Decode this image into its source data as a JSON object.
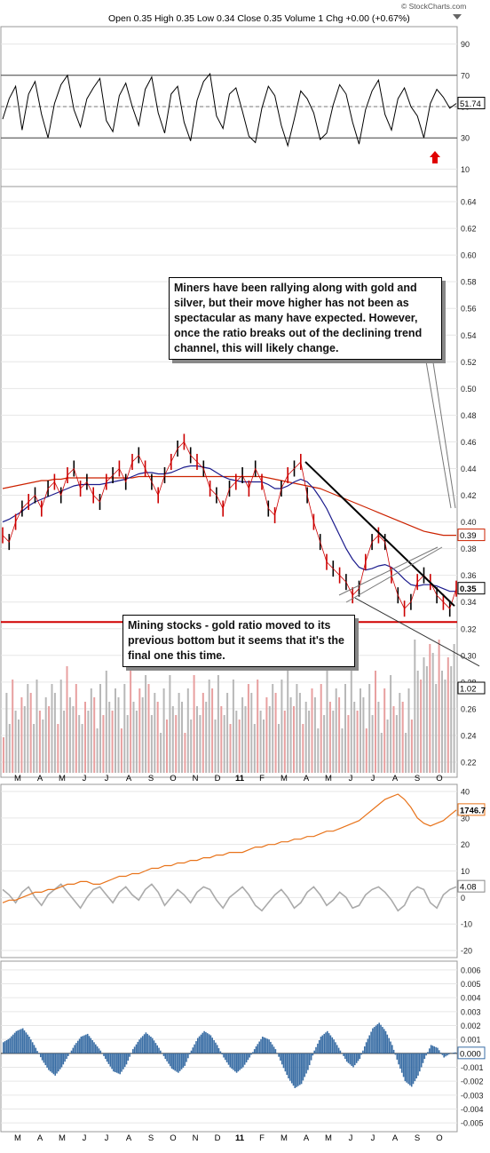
{
  "header": {
    "ohlc": "Open 0.35  High 0.35  Low 0.34  Close 0.35  Volume 1  Chg +0.00 (+0.67%)",
    "watermark": "© StockCharts.com"
  },
  "annotations": {
    "top": "Miners have been rallying along with gold and silver, but their move higher has not been as spectacular as many have expected. However, once the ratio breaks out of the declining trend channel, this will likely change.",
    "bottom": "Mining stocks - gold ratio moved to its previous bottom but it seems that it's the final one this time."
  },
  "colors": {
    "price": "#cc0000",
    "bars": "#000000",
    "ma_short": "#1a1a8c",
    "ma_long": "#cc2200",
    "gold": "#e8731a",
    "gray": "#aaaaaa",
    "hist": "#3a6ea5",
    "volume_red": "#e8a0a0",
    "volume_gray": "#b8b8b8",
    "arrow": "#e00000"
  },
  "chart_data": [
    {
      "type": "line",
      "name": "rsi",
      "y_ticks": [
        "90",
        "70",
        "50",
        "30",
        "10"
      ],
      "ylim": [
        0,
        100
      ],
      "levels": [
        70,
        30
      ],
      "last_value": "51.74",
      "values": [
        42,
        55,
        63,
        35,
        58,
        66,
        45,
        30,
        52,
        64,
        70,
        48,
        37,
        55,
        62,
        68,
        41,
        34,
        57,
        65,
        50,
        38,
        61,
        69,
        46,
        33,
        58,
        63,
        40,
        28,
        54,
        66,
        71,
        44,
        36,
        58,
        62,
        47,
        31,
        27,
        49,
        63,
        57,
        38,
        25,
        42,
        60,
        55,
        46,
        29,
        33,
        51,
        64,
        58,
        40,
        26,
        48,
        60,
        67,
        45,
        35,
        55,
        62,
        50,
        44,
        30,
        52,
        61,
        56,
        49,
        52
      ]
    },
    {
      "type": "line",
      "name": "ratio",
      "y_ticks": [
        "0.64",
        "0.62",
        "0.60",
        "0.58",
        "0.56",
        "0.54",
        "0.52",
        "0.50",
        "0.48",
        "0.46",
        "0.44",
        "0.42",
        "0.40",
        "0.38",
        "0.36",
        "0.34",
        "0.32",
        "0.30",
        "0.28",
        "0.26",
        "0.24",
        "0.22"
      ],
      "ylim": [
        0.21,
        0.65
      ],
      "support_level": 0.325,
      "last_value": "0.35",
      "ma_long_value": "0.39",
      "values": [
        0.39,
        0.385,
        0.4,
        0.41,
        0.415,
        0.42,
        0.41,
        0.425,
        0.43,
        0.42,
        0.435,
        0.44,
        0.425,
        0.43,
        0.42,
        0.415,
        0.43,
        0.435,
        0.44,
        0.43,
        0.445,
        0.45,
        0.44,
        0.43,
        0.42,
        0.435,
        0.445,
        0.455,
        0.46,
        0.45,
        0.445,
        0.44,
        0.425,
        0.42,
        0.41,
        0.425,
        0.43,
        0.435,
        0.425,
        0.44,
        0.43,
        0.41,
        0.405,
        0.425,
        0.435,
        0.44,
        0.445,
        0.42,
        0.4,
        0.385,
        0.37,
        0.365,
        0.36,
        0.355,
        0.345,
        0.35,
        0.37,
        0.385,
        0.39,
        0.385,
        0.36,
        0.345,
        0.335,
        0.34,
        0.355,
        0.36,
        0.355,
        0.345,
        0.34,
        0.335,
        0.35
      ],
      "ma_short": [
        0.4,
        0.402,
        0.405,
        0.408,
        0.412,
        0.415,
        0.417,
        0.419,
        0.421,
        0.423,
        0.425,
        0.427,
        0.428,
        0.428,
        0.428,
        0.428,
        0.429,
        0.43,
        0.431,
        0.432,
        0.434,
        0.436,
        0.437,
        0.437,
        0.436,
        0.436,
        0.437,
        0.439,
        0.441,
        0.442,
        0.442,
        0.441,
        0.44,
        0.437,
        0.434,
        0.432,
        0.431,
        0.43,
        0.43,
        0.43,
        0.43,
        0.428,
        0.425,
        0.425,
        0.427,
        0.43,
        0.432,
        0.43,
        0.425,
        0.418,
        0.41,
        0.4,
        0.39,
        0.38,
        0.372,
        0.366,
        0.364,
        0.365,
        0.367,
        0.368,
        0.366,
        0.362,
        0.357,
        0.353,
        0.352,
        0.353,
        0.353,
        0.352,
        0.35,
        0.348,
        0.348
      ],
      "ma_long": [
        0.425,
        0.426,
        0.427,
        0.428,
        0.429,
        0.43,
        0.431,
        0.431,
        0.432,
        0.432,
        0.433,
        0.433,
        0.433,
        0.433,
        0.433,
        0.433,
        0.433,
        0.433,
        0.433,
        0.433,
        0.433,
        0.434,
        0.434,
        0.434,
        0.434,
        0.434,
        0.434,
        0.434,
        0.434,
        0.434,
        0.434,
        0.434,
        0.434,
        0.434,
        0.434,
        0.434,
        0.434,
        0.434,
        0.434,
        0.434,
        0.434,
        0.433,
        0.432,
        0.431,
        0.43,
        0.429,
        0.428,
        0.427,
        0.426,
        0.425,
        0.423,
        0.421,
        0.419,
        0.417,
        0.415,
        0.413,
        0.411,
        0.409,
        0.407,
        0.405,
        0.403,
        0.401,
        0.399,
        0.397,
        0.395,
        0.393,
        0.392,
        0.391,
        0.39,
        0.39,
        0.39
      ],
      "volume_last": "1.02"
    },
    {
      "type": "line",
      "name": "gold_and_oscillator",
      "y_ticks": [
        "40",
        "30",
        "20",
        "10",
        "0",
        "-10",
        "-20"
      ],
      "ylim": [
        -22,
        42
      ],
      "gold_last": "1746.7",
      "osc_last": "4.08",
      "gold": [
        -2,
        -1,
        -1,
        0,
        1,
        2,
        2,
        3,
        3,
        4,
        5,
        5,
        6,
        6,
        5,
        5,
        6,
        7,
        8,
        8,
        9,
        9,
        10,
        11,
        11,
        12,
        12,
        13,
        13,
        14,
        14,
        15,
        15,
        16,
        16,
        17,
        17,
        17,
        18,
        19,
        19,
        20,
        20,
        21,
        21,
        22,
        22,
        23,
        23,
        24,
        25,
        25,
        26,
        27,
        28,
        29,
        31,
        33,
        35,
        37,
        38,
        39,
        37,
        34,
        30,
        28,
        27,
        28,
        29,
        31,
        33
      ],
      "osc": [
        3,
        1,
        -2,
        2,
        4,
        0,
        -3,
        1,
        3,
        5,
        2,
        -1,
        -4,
        0,
        3,
        4,
        1,
        -2,
        2,
        4,
        1,
        -1,
        3,
        5,
        2,
        -3,
        0,
        3,
        1,
        -2,
        2,
        4,
        3,
        -1,
        -4,
        0,
        2,
        4,
        1,
        -3,
        -5,
        -2,
        1,
        3,
        0,
        -4,
        -2,
        2,
        4,
        1,
        -3,
        -1,
        2,
        0,
        -4,
        -3,
        1,
        3,
        4,
        2,
        -1,
        -5,
        -3,
        2,
        4,
        3,
        -2,
        -4,
        1,
        3,
        4
      ]
    },
    {
      "type": "bar",
      "name": "histogram",
      "y_ticks": [
        "0.006",
        "0.005",
        "0.004",
        "0.003",
        "0.002",
        "0.001",
        "0.000",
        "-0.001",
        "-0.002",
        "-0.003",
        "-0.004",
        "-0.005"
      ],
      "ylim": [
        -0.0055,
        0.0065
      ],
      "last_value": "0.000",
      "values": [
        0.0008,
        0.0011,
        0.0016,
        0.0018,
        0.0012,
        0.0004,
        -0.0005,
        -0.0012,
        -0.0016,
        -0.001,
        -0.0002,
        0.0006,
        0.0012,
        0.0014,
        0.0008,
        0.0002,
        -0.0006,
        -0.0013,
        -0.0015,
        -0.0008,
        0.0003,
        0.001,
        0.0015,
        0.0011,
        0.0004,
        -0.0004,
        -0.0011,
        -0.0014,
        -0.0009,
        0.0002,
        0.0011,
        0.0016,
        0.0013,
        0.0006,
        -0.0003,
        -0.001,
        -0.0014,
        -0.001,
        -0.0003,
        0.0005,
        0.0012,
        0.001,
        0.0003,
        -0.0008,
        -0.0018,
        -0.0025,
        -0.0022,
        -0.0012,
        0.0002,
        0.0012,
        0.0016,
        0.001,
        0.0002,
        -0.0006,
        -0.001,
        -0.0004,
        0.0008,
        0.0018,
        0.0022,
        0.0016,
        0.0006,
        -0.0008,
        -0.002,
        -0.0024,
        -0.0016,
        -0.0004,
        0.0006,
        0.0004,
        -0.0003,
        0.0,
        0.0001
      ]
    }
  ],
  "months": [
    "M",
    "A",
    "M",
    "J",
    "J",
    "A",
    "S",
    "O",
    "N",
    "D",
    "11",
    "F",
    "M",
    "A",
    "M",
    "J",
    "J",
    "A",
    "S",
    "O"
  ]
}
